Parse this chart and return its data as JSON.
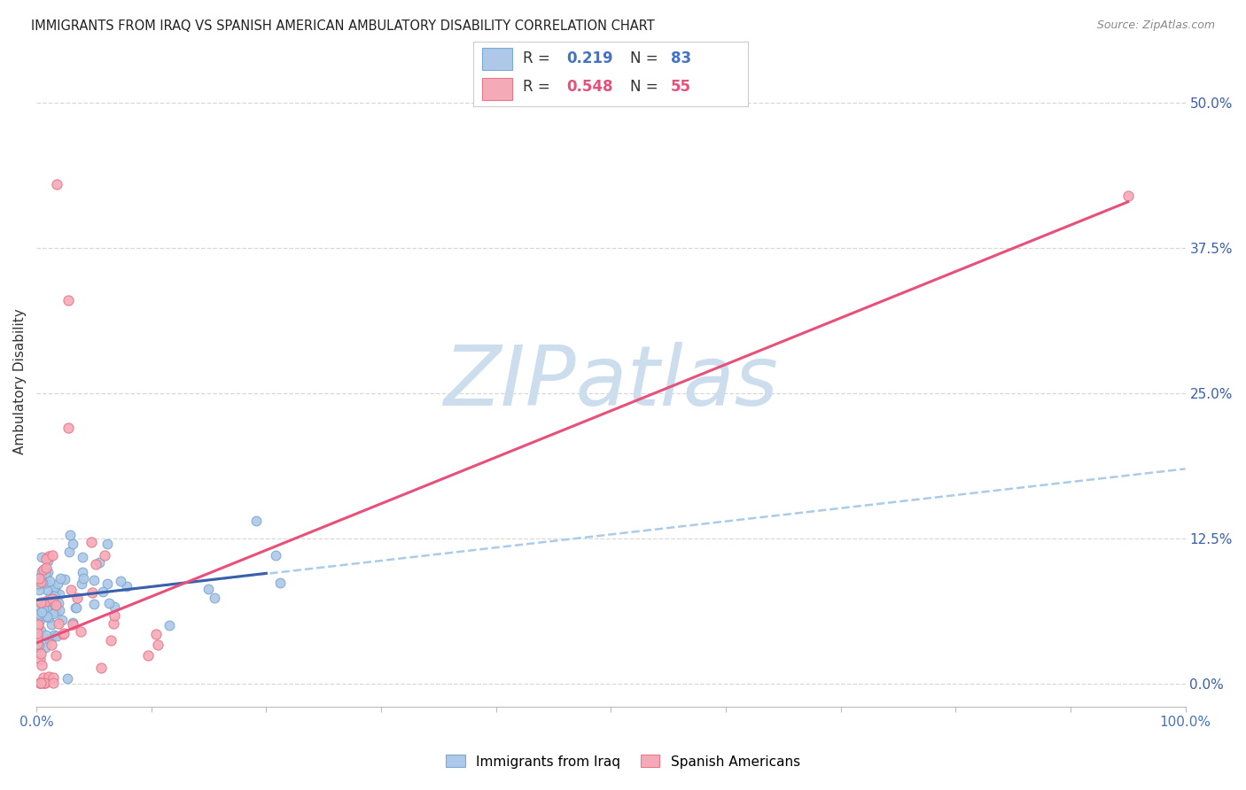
{
  "title": "IMMIGRANTS FROM IRAQ VS SPANISH AMERICAN AMBULATORY DISABILITY CORRELATION CHART",
  "source": "Source: ZipAtlas.com",
  "ylabel": "Ambulatory Disability",
  "ytick_labels": [
    "0.0%",
    "12.5%",
    "25.0%",
    "37.5%",
    "50.0%"
  ],
  "ytick_values": [
    0.0,
    0.125,
    0.25,
    0.375,
    0.5
  ],
  "xlim": [
    0.0,
    1.0
  ],
  "ylim": [
    -0.02,
    0.54
  ],
  "legend_iraq_R": "0.219",
  "legend_iraq_N": "83",
  "legend_spanish_R": "0.548",
  "legend_spanish_N": "55",
  "legend_labels": [
    "Immigrants from Iraq",
    "Spanish Americans"
  ],
  "iraq_color": "#adc8e8",
  "iraq_edge_color": "#7aaad0",
  "spanish_color": "#f5aab8",
  "spanish_edge_color": "#e87888",
  "iraq_line_color": "#3a5fad",
  "spanish_line_color": "#e8507a",
  "iraq_dash_color": "#aacce8",
  "watermark_text": "ZIPatlas",
  "watermark_color": "#ccdded",
  "grid_color": "#d8d8d8",
  "bottom_spine_color": "#bbbbbb"
}
